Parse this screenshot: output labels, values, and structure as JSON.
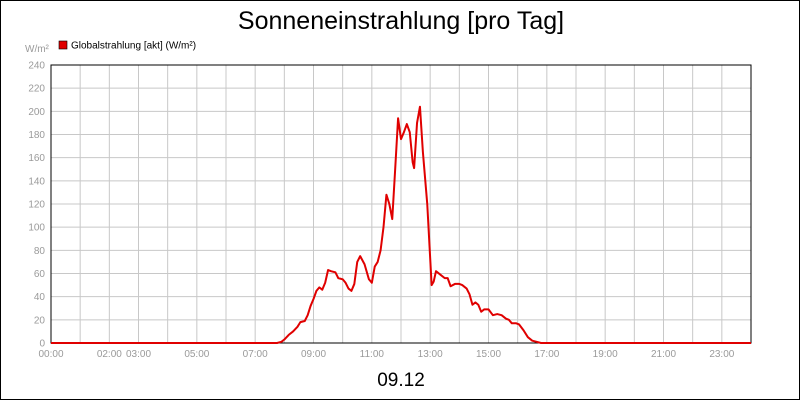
{
  "chart_data": {
    "type": "line",
    "title": "Sonneneinstrahlung [pro Tag]",
    "ylabel": "W/m²",
    "date_label": "09.12",
    "ylim": [
      0,
      240
    ],
    "xlim": [
      0,
      24
    ],
    "yticks": [
      0,
      20,
      40,
      60,
      80,
      100,
      120,
      140,
      160,
      180,
      200,
      220,
      240
    ],
    "xtick_labels": [
      "00:00",
      "02:00",
      "03:00",
      "05:00",
      "07:00",
      "09:00",
      "11:00",
      "13:00",
      "15:00",
      "17:00",
      "19:00",
      "21:00",
      "23:00"
    ],
    "xtick_hours": [
      0,
      2,
      3,
      5,
      7,
      9,
      11,
      13,
      15,
      17,
      19,
      21,
      23
    ],
    "grid": true,
    "legend_position": "top-left",
    "series": [
      {
        "name": "Globalstrahlung [akt] (W/m²)",
        "color": "#e00000",
        "points": [
          [
            0,
            0
          ],
          [
            7.75,
            0
          ],
          [
            7.9,
            1
          ],
          [
            8.0,
            3
          ],
          [
            8.15,
            7
          ],
          [
            8.3,
            10
          ],
          [
            8.45,
            14
          ],
          [
            8.55,
            18
          ],
          [
            8.7,
            19
          ],
          [
            8.8,
            24
          ],
          [
            8.9,
            32
          ],
          [
            9.0,
            38
          ],
          [
            9.1,
            45
          ],
          [
            9.2,
            48
          ],
          [
            9.3,
            46
          ],
          [
            9.4,
            52
          ],
          [
            9.5,
            63
          ],
          [
            9.6,
            62
          ],
          [
            9.75,
            61
          ],
          [
            9.85,
            56
          ],
          [
            10.0,
            55
          ],
          [
            10.1,
            52
          ],
          [
            10.2,
            47
          ],
          [
            10.3,
            45
          ],
          [
            10.4,
            51
          ],
          [
            10.5,
            70
          ],
          [
            10.6,
            75
          ],
          [
            10.75,
            68
          ],
          [
            10.9,
            55
          ],
          [
            11.0,
            52
          ],
          [
            11.1,
            66
          ],
          [
            11.2,
            70
          ],
          [
            11.3,
            80
          ],
          [
            11.4,
            100
          ],
          [
            11.5,
            128
          ],
          [
            11.6,
            120
          ],
          [
            11.7,
            107
          ],
          [
            11.8,
            150
          ],
          [
            11.9,
            194
          ],
          [
            12.0,
            176
          ],
          [
            12.1,
            182
          ],
          [
            12.2,
            189
          ],
          [
            12.3,
            182
          ],
          [
            12.4,
            156
          ],
          [
            12.45,
            151
          ],
          [
            12.55,
            190
          ],
          [
            12.65,
            204
          ],
          [
            12.75,
            165
          ],
          [
            12.9,
            120
          ],
          [
            13.05,
            50
          ],
          [
            13.12,
            53
          ],
          [
            13.2,
            62
          ],
          [
            13.35,
            59
          ],
          [
            13.5,
            56
          ],
          [
            13.6,
            56
          ],
          [
            13.7,
            49
          ],
          [
            13.85,
            51
          ],
          [
            14.0,
            51
          ],
          [
            14.1,
            50
          ],
          [
            14.25,
            47
          ],
          [
            14.35,
            42
          ],
          [
            14.45,
            33
          ],
          [
            14.55,
            35
          ],
          [
            14.65,
            33
          ],
          [
            14.75,
            27
          ],
          [
            14.85,
            29
          ],
          [
            15.0,
            29
          ],
          [
            15.15,
            24
          ],
          [
            15.3,
            25
          ],
          [
            15.45,
            24
          ],
          [
            15.6,
            21
          ],
          [
            15.7,
            20
          ],
          [
            15.8,
            17
          ],
          [
            15.95,
            17
          ],
          [
            16.05,
            16
          ],
          [
            16.2,
            11
          ],
          [
            16.35,
            5
          ],
          [
            16.5,
            2
          ],
          [
            16.65,
            1
          ],
          [
            16.8,
            0
          ],
          [
            24,
            0
          ]
        ]
      }
    ]
  }
}
